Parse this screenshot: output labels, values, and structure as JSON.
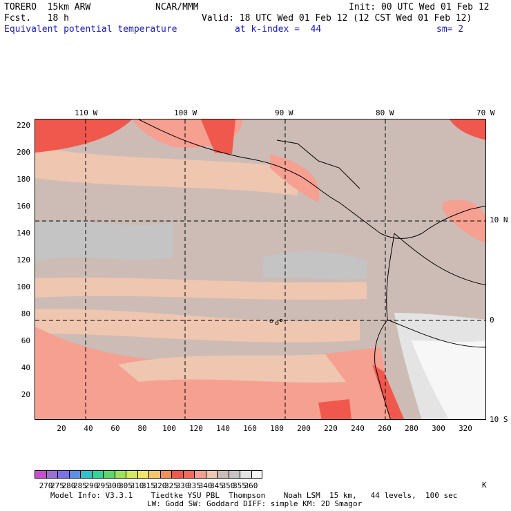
{
  "header": {
    "model": "TORERO  15km ARW",
    "center": "NCAR/MMM",
    "init": "Init: 00 UTC Wed 01 Feb 12",
    "fcst": "Fcst.   18 h",
    "valid": "Valid: 18 UTC Wed 01 Feb 12 (12 CST Wed 01 Feb 12)",
    "field": "Equivalent potential temperature",
    "level": "at k-index =  44",
    "smooth": "sm= 2"
  },
  "map": {
    "lon_labels": [
      "110 W",
      "100 W",
      "90 W",
      "80 W",
      "70 W"
    ],
    "lat_labels": [
      "10 N",
      "0",
      "10 S"
    ],
    "y_ticks": [
      "220",
      "200",
      "180",
      "160",
      "140",
      "120",
      "100",
      "80",
      "60",
      "40",
      "20"
    ],
    "x_ticks": [
      "20",
      "40",
      "60",
      "80",
      "100",
      "120",
      "140",
      "160",
      "180",
      "200",
      "220",
      "240",
      "260",
      "280",
      "300",
      "320"
    ]
  },
  "colorbar": {
    "unit": "K",
    "levels": [
      "270",
      "275",
      "280",
      "285",
      "290",
      "295",
      "300",
      "305",
      "310",
      "315",
      "320",
      "325",
      "330",
      "335",
      "340",
      "345",
      "350",
      "355",
      "360"
    ],
    "colors": [
      "#c84fcc",
      "#9a6fd8",
      "#7b72e8",
      "#5e8fe8",
      "#34c2c8",
      "#36d29a",
      "#5cd86c",
      "#9ee25c",
      "#d4ec5c",
      "#f2e66a",
      "#f6c66e",
      "#f29058",
      "#f0584e",
      "#f26a5c",
      "#f5a090",
      "#efc6b0",
      "#cdbcb6",
      "#c4c4c4",
      "#e4e4e4",
      "#f7f7f7"
    ]
  },
  "footer": {
    "line1": "Model Info: V3.3.1    Tiedtke YSU PBL  Thompson    Noah LSM  15 km,   44 levels,  100 sec",
    "line2": "LW: Godd SW: Goddard DIFF: simple KM: 2D Smagor"
  }
}
